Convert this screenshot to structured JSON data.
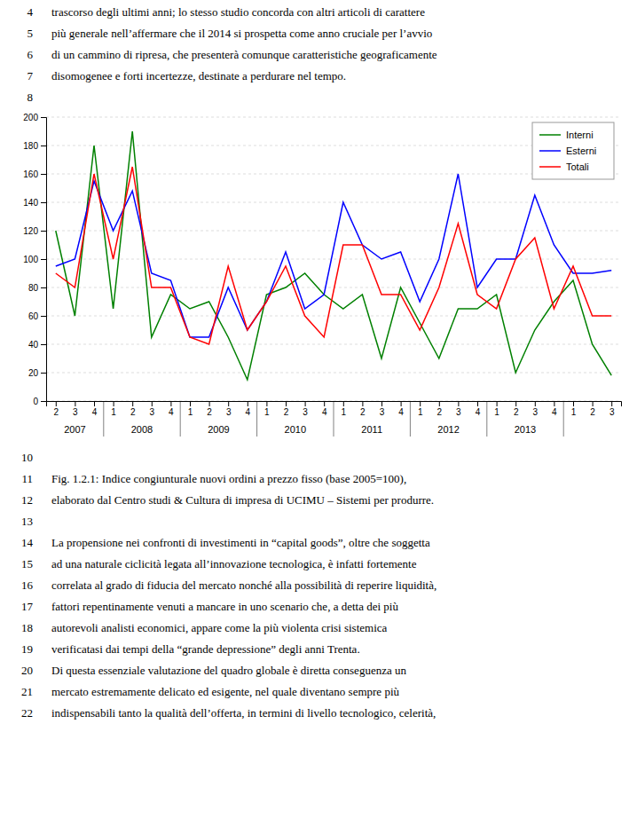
{
  "chart_data": {
    "type": "line",
    "categories": [
      "2",
      "3",
      "4",
      "1",
      "2",
      "3",
      "4",
      "1",
      "2",
      "3",
      "4",
      "1",
      "2",
      "3",
      "4",
      "1",
      "2",
      "3",
      "4",
      "1",
      "2",
      "3",
      "4",
      "1",
      "2",
      "3",
      "4",
      "1",
      "2",
      "3"
    ],
    "year_labels": [
      "2007",
      "2008",
      "2009",
      "2010",
      "2011",
      "2012",
      "2013"
    ],
    "series": [
      {
        "name": "Interni",
        "color": "#008000",
        "values": [
          120,
          60,
          180,
          65,
          190,
          45,
          75,
          65,
          70,
          45,
          15,
          75,
          80,
          90,
          75,
          65,
          75,
          30,
          80,
          55,
          30,
          65,
          65,
          75,
          20,
          50,
          70,
          85,
          40,
          18
        ]
      },
      {
        "name": "Esterni",
        "color": "#0000FF",
        "values": [
          95,
          100,
          155,
          120,
          148,
          90,
          85,
          45,
          45,
          80,
          50,
          70,
          105,
          65,
          75,
          140,
          110,
          100,
          105,
          70,
          100,
          160,
          80,
          100,
          100,
          145,
          110,
          90,
          90,
          92
        ]
      },
      {
        "name": "Totali",
        "color": "#FF0000",
        "values": [
          90,
          80,
          160,
          100,
          165,
          80,
          80,
          45,
          40,
          95,
          50,
          70,
          95,
          60,
          45,
          110,
          110,
          75,
          75,
          50,
          80,
          125,
          75,
          65,
          100,
          115,
          65,
          95,
          60,
          60
        ]
      }
    ],
    "ylim": [
      0,
      200
    ],
    "yticks": [
      0,
      20,
      40,
      60,
      80,
      100,
      120,
      140,
      160,
      180,
      200
    ],
    "grid": true,
    "legend": "upper right"
  },
  "page_text": {
    "lines_before": [
      {
        "number": 4,
        "text": "trascorso degli ultimi anni; lo stesso studio concorda con altri articoli di carattere"
      },
      {
        "number": 5,
        "text": "più generale nell’affermare che il 2014 si prospetta come anno cruciale per l’avvio"
      },
      {
        "number": 6,
        "text": "di un cammino di ripresa, che presenterà comunque caratteristiche geograficamente"
      },
      {
        "number": 7,
        "text": "disomogenee e forti incertezze, destinate a perdurare nel tempo."
      },
      {
        "number": 8
      }
    ],
    "lines_after": [
      {
        "number": 10
      },
      {
        "number": 11,
        "text": "Fig.  1.2.1:  Indice  congiunturale  nuovi  ordini  a  prezzo  fisso  (base  2005=100),"
      },
      {
        "number": 12,
        "text": "elaborato dal Centro studi & Cultura di impresa di UCIMU – Sistemi per produrre."
      },
      {
        "number": 13
      },
      {
        "number": 14,
        "text": "La propensione nei confronti di investimenti in “capital goods”, oltre che soggetta"
      },
      {
        "number": 15,
        "text": "ad una naturale ciclicità legata all’innovazione tecnologica, è infatti fortemente"
      },
      {
        "number": 16,
        "text": "correlata al grado di fiducia del mercato nonché alla possibilità di reperire liquidità,"
      },
      {
        "number": 17,
        "text": "fattori repentinamente venuti a mancare in uno scenario che, a detta dei più"
      },
      {
        "number": 18,
        "text": "autorevoli analisti economici, appare come la più violenta crisi sistemica"
      },
      {
        "number": 19,
        "text": "verificatasi dai tempi della “grande depressione” degli anni Trenta."
      },
      {
        "number": 20,
        "text": "Di questa essenziale valutazione del quadro globale è diretta conseguenza un"
      },
      {
        "number": 21,
        "text": "mercato estremamente delicato ed esigente, nel quale diventano sempre più"
      },
      {
        "number": 22,
        "text": "indispensabili tanto la qualità dell’offerta, in termini di livello tecnologico, celerità,"
      }
    ]
  }
}
